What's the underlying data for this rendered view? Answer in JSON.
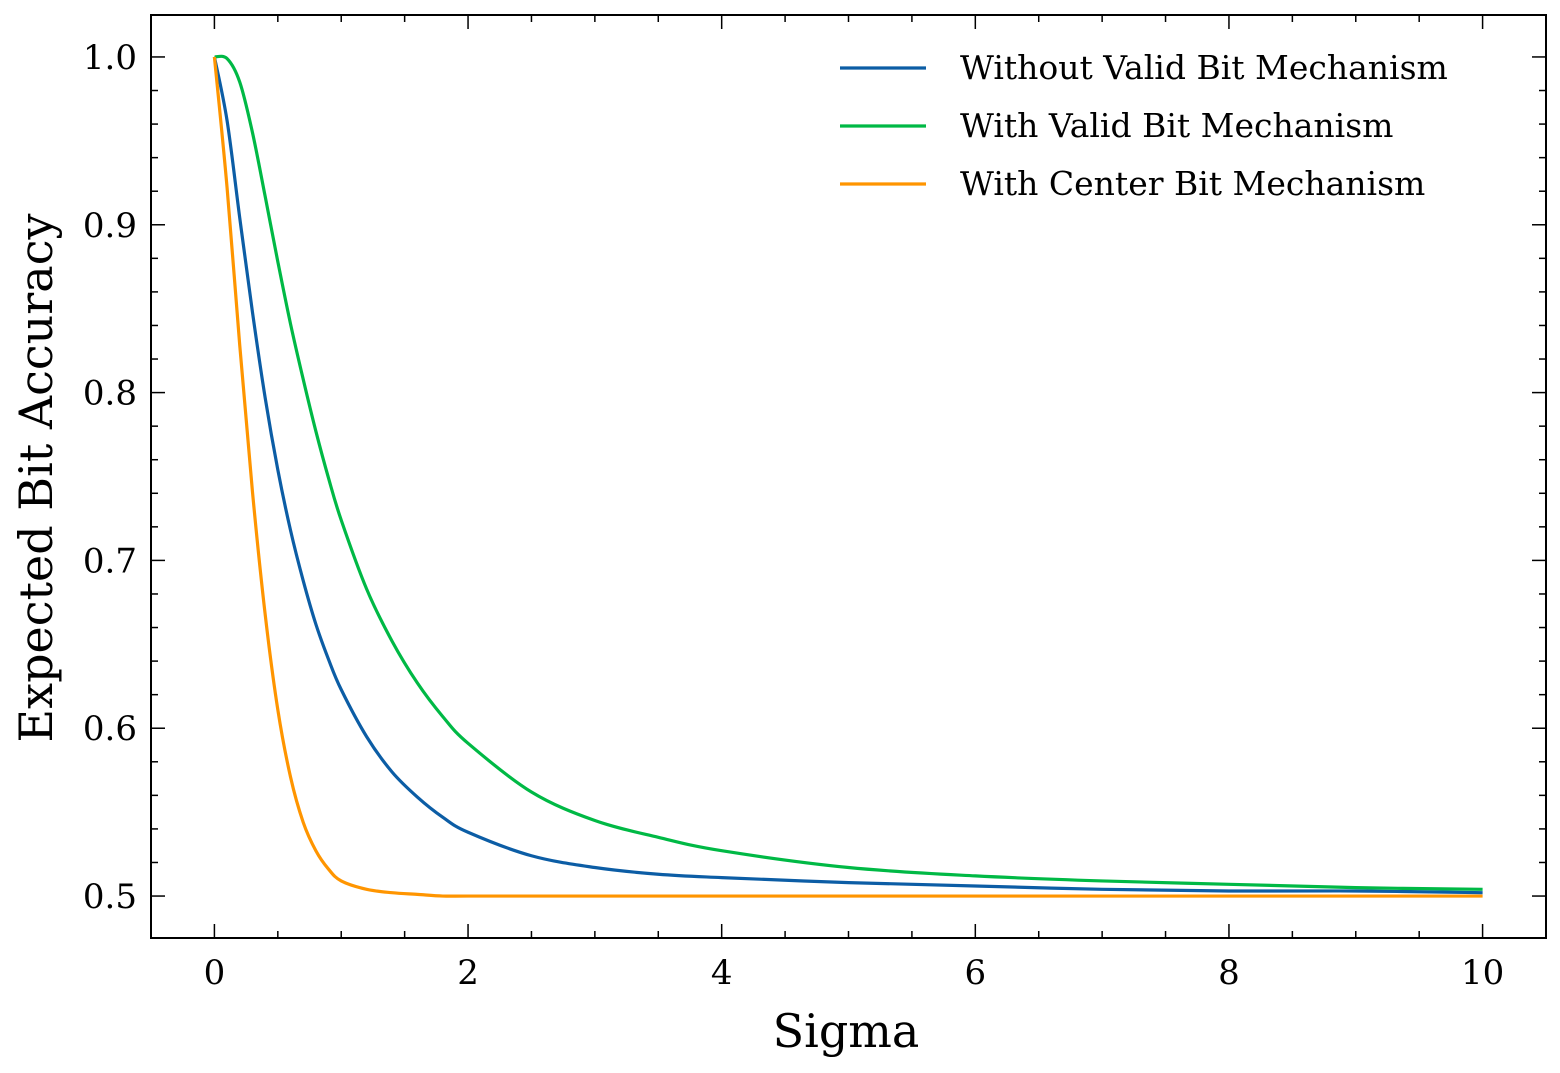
{
  "chart_data": {
    "type": "line",
    "title": "",
    "xlabel": "Sigma",
    "ylabel": "Expected Bit Accuracy",
    "xlim": [
      -0.5,
      10.5
    ],
    "ylim": [
      0.475,
      1.025
    ],
    "xticks": [
      0,
      2,
      4,
      6,
      8,
      10
    ],
    "yticks": [
      0.5,
      0.6,
      0.7,
      0.8,
      0.9,
      1.0
    ],
    "ytick_labels": [
      "0.5",
      "0.6",
      "0.7",
      "0.8",
      "0.9",
      "1.0"
    ],
    "grid": false,
    "legend_position": "top-right",
    "x": [
      0,
      0.1,
      0.2,
      0.3,
      0.4,
      0.5,
      0.6,
      0.7,
      0.8,
      0.9,
      1.0,
      1.2,
      1.4,
      1.6,
      1.8,
      2.0,
      2.5,
      3.0,
      3.5,
      4.0,
      5.0,
      6.0,
      7.0,
      8.0,
      9.0,
      10.0
    ],
    "series": [
      {
        "name": "Without Valid Bit Mechanism",
        "color": "#0C5DA5",
        "values": [
          1.0,
          0.962,
          0.904,
          0.848,
          0.797,
          0.754,
          0.718,
          0.688,
          0.662,
          0.641,
          0.623,
          0.595,
          0.574,
          0.559,
          0.547,
          0.538,
          0.524,
          0.517,
          0.513,
          0.511,
          0.508,
          0.506,
          0.504,
          0.503,
          0.503,
          0.502
        ]
      },
      {
        "name": "With Valid Bit Mechanism",
        "color": "#00B945",
        "values": [
          1.0,
          0.999,
          0.985,
          0.955,
          0.917,
          0.878,
          0.841,
          0.808,
          0.777,
          0.749,
          0.724,
          0.683,
          0.652,
          0.627,
          0.607,
          0.591,
          0.562,
          0.545,
          0.535,
          0.527,
          0.517,
          0.512,
          0.509,
          0.507,
          0.505,
          0.504
        ]
      },
      {
        "name": "With Center Bit Mechanism",
        "color": "#FF9500",
        "values": [
          1.0,
          0.922,
          0.828,
          0.741,
          0.668,
          0.611,
          0.571,
          0.544,
          0.527,
          0.516,
          0.509,
          0.504,
          0.502,
          0.501,
          0.5,
          0.5,
          0.5,
          0.5,
          0.5,
          0.5,
          0.5,
          0.5,
          0.5,
          0.5,
          0.5,
          0.5
        ]
      }
    ]
  }
}
